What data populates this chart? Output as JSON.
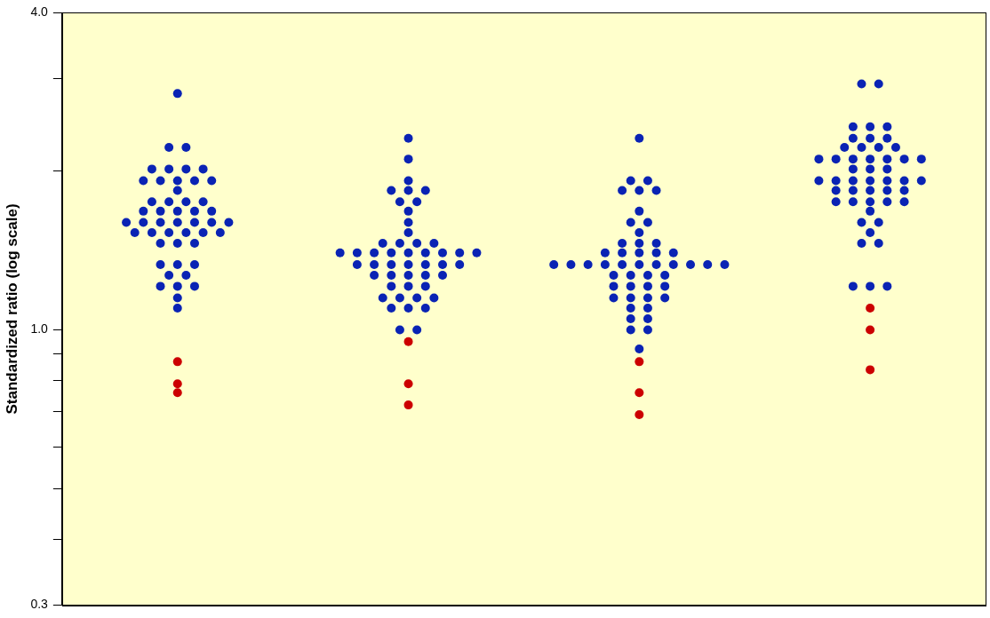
{
  "chart_data": {
    "type": "scatter",
    "ylabel": "Standardized ratio (log scale)",
    "log": true,
    "grid": false,
    "legend": false,
    "marker": "circle",
    "tick_labels": "y",
    "categories": [
      null,
      null,
      null,
      null
    ],
    "ylim": [
      0.3,
      4.0
    ],
    "yticks": [
      {
        "value": 0.3,
        "label": "0.3"
      },
      {
        "value": 0.4,
        "label": null
      },
      {
        "value": 0.5,
        "label": null
      },
      {
        "value": 0.6,
        "label": null
      },
      {
        "value": 0.7,
        "label": null
      },
      {
        "value": 0.8,
        "label": null
      },
      {
        "value": 0.9,
        "label": null
      },
      {
        "value": 1.0,
        "label": "1.0"
      },
      {
        "value": 2.0,
        "label": null
      },
      {
        "value": 3.0,
        "label": null
      },
      {
        "value": 4.0,
        "label": "4.0"
      }
    ],
    "series": [
      {
        "color": "#0a23b4",
        "values": [
          2.81,
          2.31,
          2.31,
          2.93
        ]
      },
      {
        "color": "#0a23b4",
        "values": [
          2.22,
          2.11,
          1.92,
          2.93
        ]
      },
      {
        "color": "#0a23b4",
        "values": [
          2.22,
          1.92,
          1.92,
          2.43
        ]
      },
      {
        "color": "#0a23b4",
        "values": [
          2.02,
          1.84,
          1.84,
          2.43
        ]
      },
      {
        "color": "#0a23b4",
        "values": [
          2.02,
          1.84,
          1.84,
          2.43
        ]
      },
      {
        "color": "#0a23b4",
        "values": [
          2.02,
          1.84,
          1.84,
          2.31
        ]
      },
      {
        "color": "#0a23b4",
        "values": [
          2.02,
          1.75,
          1.68,
          2.31
        ]
      },
      {
        "color": "#0a23b4",
        "values": [
          1.92,
          1.75,
          1.6,
          2.31
        ]
      },
      {
        "color": "#0a23b4",
        "values": [
          1.92,
          1.68,
          1.6,
          2.22
        ]
      },
      {
        "color": "#0a23b4",
        "values": [
          1.92,
          1.6,
          1.53,
          2.22
        ]
      },
      {
        "color": "#0a23b4",
        "values": [
          1.92,
          1.53,
          1.46,
          2.22
        ]
      },
      {
        "color": "#0a23b4",
        "values": [
          1.92,
          1.46,
          1.46,
          2.22
        ]
      },
      {
        "color": "#0a23b4",
        "values": [
          1.84,
          1.46,
          1.46,
          2.11
        ]
      },
      {
        "color": "#0a23b4",
        "values": [
          1.75,
          1.46,
          1.4,
          2.11
        ]
      },
      {
        "color": "#0a23b4",
        "values": [
          1.75,
          1.46,
          1.4,
          2.11
        ]
      },
      {
        "color": "#0a23b4",
        "values": [
          1.75,
          1.4,
          1.4,
          2.11
        ]
      },
      {
        "color": "#0a23b4",
        "values": [
          1.75,
          1.4,
          1.4,
          2.11
        ]
      },
      {
        "color": "#0a23b4",
        "values": [
          1.68,
          1.4,
          1.4,
          2.11
        ]
      },
      {
        "color": "#0a23b4",
        "values": [
          1.68,
          1.4,
          1.33,
          2.11
        ]
      },
      {
        "color": "#0a23b4",
        "values": [
          1.68,
          1.4,
          1.33,
          2.02
        ]
      },
      {
        "color": "#0a23b4",
        "values": [
          1.68,
          1.4,
          1.33,
          2.02
        ]
      },
      {
        "color": "#0a23b4",
        "values": [
          1.68,
          1.4,
          1.33,
          2.02
        ]
      },
      {
        "color": "#0a23b4",
        "values": [
          1.6,
          1.4,
          1.33,
          1.92
        ]
      },
      {
        "color": "#0a23b4",
        "values": [
          1.6,
          1.4,
          1.33,
          1.92
        ]
      },
      {
        "color": "#0a23b4",
        "values": [
          1.6,
          1.33,
          1.33,
          1.92
        ]
      },
      {
        "color": "#0a23b4",
        "values": [
          1.6,
          1.33,
          1.33,
          1.92
        ]
      },
      {
        "color": "#0a23b4",
        "values": [
          1.6,
          1.33,
          1.33,
          1.92
        ]
      },
      {
        "color": "#0a23b4",
        "values": [
          1.6,
          1.33,
          1.33,
          1.92
        ]
      },
      {
        "color": "#0a23b4",
        "values": [
          1.6,
          1.33,
          1.33,
          1.92
        ]
      },
      {
        "color": "#0a23b4",
        "values": [
          1.53,
          1.33,
          1.27,
          1.84
        ]
      },
      {
        "color": "#0a23b4",
        "values": [
          1.53,
          1.33,
          1.27,
          1.84
        ]
      },
      {
        "color": "#0a23b4",
        "values": [
          1.53,
          1.27,
          1.27,
          1.84
        ]
      },
      {
        "color": "#0a23b4",
        "values": [
          1.53,
          1.27,
          1.27,
          1.84
        ]
      },
      {
        "color": "#0a23b4",
        "values": [
          1.53,
          1.27,
          1.21,
          1.84
        ]
      },
      {
        "color": "#0a23b4",
        "values": [
          1.53,
          1.27,
          1.21,
          1.75
        ]
      },
      {
        "color": "#0a23b4",
        "values": [
          1.46,
          1.27,
          1.21,
          1.75
        ]
      },
      {
        "color": "#0a23b4",
        "values": [
          1.46,
          1.21,
          1.21,
          1.75
        ]
      },
      {
        "color": "#0a23b4",
        "values": [
          1.46,
          1.21,
          1.15,
          1.75
        ]
      },
      {
        "color": "#0a23b4",
        "values": [
          1.33,
          1.21,
          1.15,
          1.75
        ]
      },
      {
        "color": "#0a23b4",
        "values": [
          1.33,
          1.15,
          1.15,
          1.68
        ]
      },
      {
        "color": "#0a23b4",
        "values": [
          1.33,
          1.15,
          1.15,
          1.6
        ]
      },
      {
        "color": "#0a23b4",
        "values": [
          1.27,
          1.15,
          1.1,
          1.6
        ]
      },
      {
        "color": "#0a23b4",
        "values": [
          1.27,
          1.15,
          1.1,
          1.53
        ]
      },
      {
        "color": "#0a23b4",
        "values": [
          1.21,
          1.1,
          1.05,
          1.46
        ]
      },
      {
        "color": "#0a23b4",
        "values": [
          1.21,
          1.1,
          1.05,
          1.46
        ]
      },
      {
        "color": "#0a23b4",
        "values": [
          1.21,
          1.1,
          1.0,
          1.21
        ]
      },
      {
        "color": "#0a23b4",
        "values": [
          1.15,
          1.0,
          1.0,
          1.21
        ]
      },
      {
        "color": "#0a23b4",
        "values": [
          1.1,
          1.0,
          0.92,
          1.21
        ]
      },
      {
        "color": "#cc0000",
        "values": [
          0.87,
          0.95,
          0.87,
          1.1
        ]
      },
      {
        "color": "#cc0000",
        "values": [
          0.79,
          0.79,
          0.76,
          1.0
        ]
      },
      {
        "color": "#cc0000",
        "values": [
          0.76,
          0.72,
          0.69,
          0.84
        ]
      }
    ]
  }
}
